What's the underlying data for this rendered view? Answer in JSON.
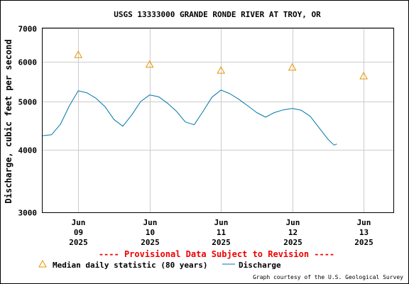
{
  "chart_data": {
    "type": "line",
    "title": "USGS 13333000 GRANDE RONDE RIVER AT TROY, OR",
    "ylabel": "Discharge, cubic feet per second",
    "y_scale": "log",
    "ylim": [
      3000,
      7000
    ],
    "y_ticks": [
      "3000",
      "4000",
      "5000",
      "6000",
      "7000"
    ],
    "y_tick_values": [
      3000,
      4000,
      5000,
      6000,
      7000
    ],
    "xlim": [
      "2025-06-08 12:00",
      "2025-06-13 10:00"
    ],
    "x_ticks": [
      {
        "value": "2025-06-09 00:00",
        "lines": [
          "Jun",
          "09",
          "2025"
        ]
      },
      {
        "value": "2025-06-10 00:00",
        "lines": [
          "Jun",
          "10",
          "2025"
        ]
      },
      {
        "value": "2025-06-11 00:00",
        "lines": [
          "Jun",
          "11",
          "2025"
        ]
      },
      {
        "value": "2025-06-12 00:00",
        "lines": [
          "Jun",
          "12",
          "2025"
        ]
      },
      {
        "value": "2025-06-13 00:00",
        "lines": [
          "Jun",
          "13",
          "2025"
        ]
      }
    ],
    "grid": true,
    "legend_position": "bottom",
    "series": [
      {
        "name": "Median daily statistic (80 years)",
        "type": "scatter",
        "marker": "triangle",
        "color": "#e69500",
        "points": [
          {
            "x": "2025-06-09 00:00",
            "y": 6200
          },
          {
            "x": "2025-06-10 00:00",
            "y": 5930
          },
          {
            "x": "2025-06-11 00:00",
            "y": 5770
          },
          {
            "x": "2025-06-12 00:00",
            "y": 5850
          },
          {
            "x": "2025-06-13 00:00",
            "y": 5620
          }
        ]
      },
      {
        "name": "Discharge",
        "type": "line",
        "color": "#0077aa",
        "points": [
          {
            "x": "2025-06-08 12:00",
            "y": 4270
          },
          {
            "x": "2025-06-08 15:00",
            "y": 4290
          },
          {
            "x": "2025-06-08 18:00",
            "y": 4500
          },
          {
            "x": "2025-06-08 21:00",
            "y": 4900
          },
          {
            "x": "2025-06-09 00:00",
            "y": 5250
          },
          {
            "x": "2025-06-09 03:00",
            "y": 5200
          },
          {
            "x": "2025-06-09 06:00",
            "y": 5070
          },
          {
            "x": "2025-06-09 09:00",
            "y": 4880
          },
          {
            "x": "2025-06-09 12:00",
            "y": 4600
          },
          {
            "x": "2025-06-09 15:00",
            "y": 4460
          },
          {
            "x": "2025-06-09 18:00",
            "y": 4700
          },
          {
            "x": "2025-06-09 21:00",
            "y": 5000
          },
          {
            "x": "2025-06-10 00:00",
            "y": 5150
          },
          {
            "x": "2025-06-10 03:00",
            "y": 5110
          },
          {
            "x": "2025-06-10 06:00",
            "y": 4960
          },
          {
            "x": "2025-06-10 09:00",
            "y": 4780
          },
          {
            "x": "2025-06-10 12:00",
            "y": 4550
          },
          {
            "x": "2025-06-10 15:00",
            "y": 4490
          },
          {
            "x": "2025-06-10 18:00",
            "y": 4780
          },
          {
            "x": "2025-06-10 21:00",
            "y": 5100
          },
          {
            "x": "2025-06-11 00:00",
            "y": 5270
          },
          {
            "x": "2025-06-11 03:00",
            "y": 5180
          },
          {
            "x": "2025-06-11 06:00",
            "y": 5050
          },
          {
            "x": "2025-06-11 09:00",
            "y": 4900
          },
          {
            "x": "2025-06-11 12:00",
            "y": 4750
          },
          {
            "x": "2025-06-11 15:00",
            "y": 4650
          },
          {
            "x": "2025-06-11 18:00",
            "y": 4750
          },
          {
            "x": "2025-06-11 21:00",
            "y": 4810
          },
          {
            "x": "2025-06-12 00:00",
            "y": 4840
          },
          {
            "x": "2025-06-12 03:00",
            "y": 4800
          },
          {
            "x": "2025-06-12 06:00",
            "y": 4670
          },
          {
            "x": "2025-06-12 09:00",
            "y": 4430
          },
          {
            "x": "2025-06-12 12:00",
            "y": 4200
          },
          {
            "x": "2025-06-12 14:00",
            "y": 4090
          },
          {
            "x": "2025-06-12 15:00",
            "y": 4110
          }
        ]
      }
    ]
  },
  "footer": {
    "provisional": "---- Provisional Data Subject to Revision ----",
    "credit": "Graph courtesy of the U.S. Geological Survey"
  }
}
